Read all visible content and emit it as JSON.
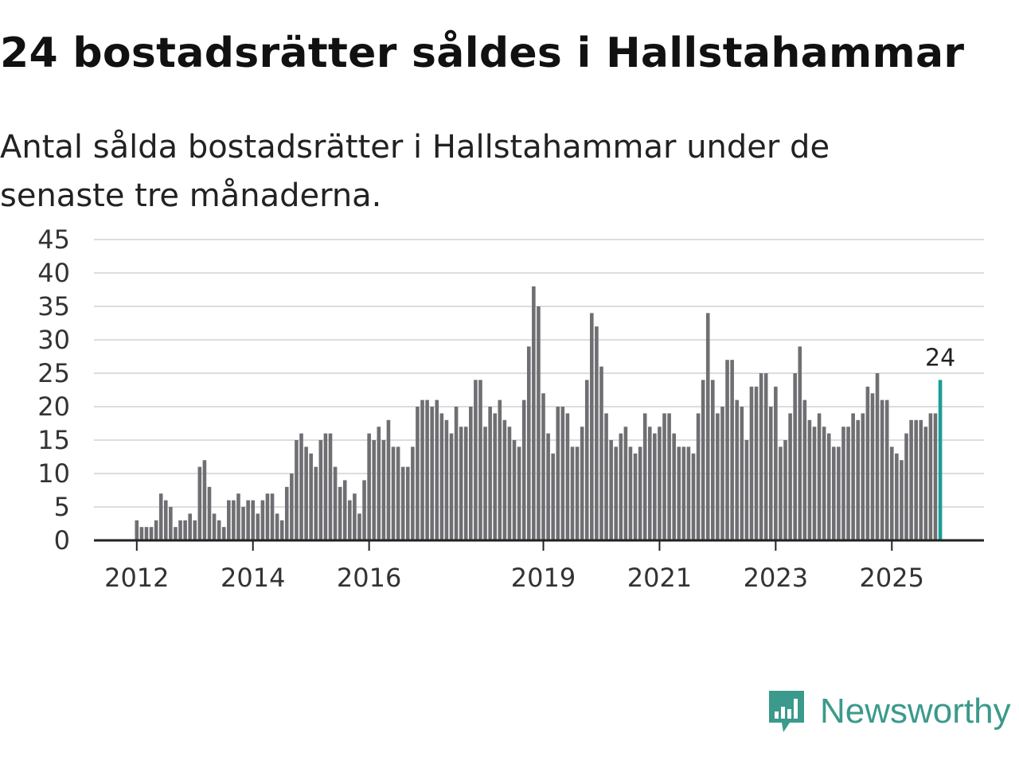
{
  "title": "24 bostadsrätter såldes i Hallstahammar",
  "subtitle": "Antal sålda bostadsrätter i Hallstahammar under de senaste tre månaderna.",
  "brand": {
    "name": "Newsworthy",
    "color": "#3a9a8c"
  },
  "colors": {
    "bar": "#6f6f73",
    "highlight": "#1a9e94",
    "grid": "#dddddd",
    "axis": "#222222"
  },
  "chart_data": {
    "type": "bar",
    "title": "24 bostadsrätter såldes i Hallstahammar",
    "xlabel": "",
    "ylabel": "",
    "ylim": [
      0,
      45
    ],
    "yticks": [
      0,
      5,
      10,
      15,
      20,
      25,
      30,
      35,
      40,
      45
    ],
    "xticks": [
      {
        "label": "2012",
        "index": 0
      },
      {
        "label": "2014",
        "index": 24
      },
      {
        "label": "2016",
        "index": 48
      },
      {
        "label": "2019",
        "index": 84
      },
      {
        "label": "2021",
        "index": 108
      },
      {
        "label": "2023",
        "index": 132
      },
      {
        "label": "2025",
        "index": 156
      }
    ],
    "start": "2012-01",
    "highlight_last": true,
    "last_label": "24",
    "values": [
      3,
      2,
      2,
      2,
      3,
      7,
      6,
      5,
      2,
      3,
      3,
      4,
      3,
      11,
      12,
      8,
      4,
      3,
      2,
      6,
      6,
      7,
      5,
      6,
      6,
      4,
      6,
      7,
      7,
      4,
      3,
      8,
      10,
      15,
      16,
      14,
      13,
      11,
      15,
      16,
      16,
      11,
      8,
      9,
      6,
      7,
      4,
      9,
      16,
      15,
      17,
      15,
      18,
      14,
      14,
      11,
      11,
      14,
      20,
      21,
      21,
      20,
      21,
      19,
      18,
      16,
      20,
      17,
      17,
      20,
      24,
      24,
      17,
      20,
      19,
      21,
      18,
      17,
      15,
      14,
      21,
      29,
      38,
      35,
      22,
      16,
      13,
      20,
      20,
      19,
      14,
      14,
      17,
      24,
      34,
      32,
      26,
      19,
      15,
      14,
      16,
      17,
      14,
      13,
      14,
      19,
      17,
      16,
      17,
      19,
      19,
      16,
      14,
      14,
      14,
      13,
      19,
      24,
      34,
      24,
      19,
      20,
      27,
      27,
      21,
      20,
      15,
      23,
      23,
      25,
      25,
      20,
      23,
      14,
      15,
      19,
      25,
      29,
      21,
      18,
      17,
      19,
      17,
      16,
      14,
      14,
      17,
      17,
      19,
      18,
      19,
      23,
      22,
      25,
      21,
      21,
      14,
      13,
      12,
      16,
      18,
      18,
      18,
      17,
      19,
      19,
      24
    ]
  }
}
